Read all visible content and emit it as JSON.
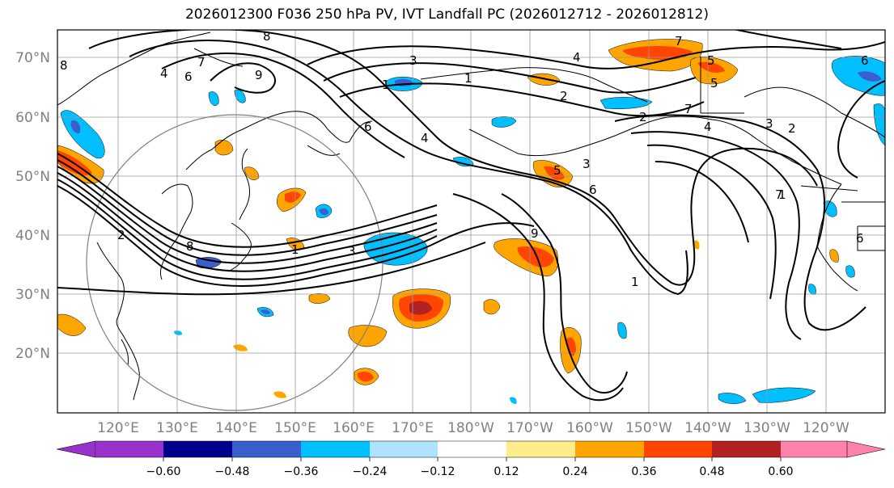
{
  "title": "2026012300 F036 250 hPa PV, IVT Landfall PC (2026012712 - 2026012812)",
  "lat_labels": [
    "70°N",
    "60°N",
    "50°N",
    "40°N",
    "30°N",
    "20°N"
  ],
  "lon_labels": [
    "120°E",
    "130°E",
    "140°E",
    "150°E",
    "160°E",
    "170°E",
    "180°W",
    "170°W",
    "160°W",
    "150°W",
    "140°W",
    "130°W",
    "120°W"
  ],
  "colorbar": {
    "colors": [
      "#9932cc",
      "#00008b",
      "#3a5fcd",
      "#00bfff",
      "#b0e2ff",
      "#ffffff",
      "#ffec8b",
      "#ffa500",
      "#ff4500",
      "#b22222",
      "#ff82ab"
    ],
    "tick_labels": [
      "−0.60",
      "−0.48",
      "−0.36",
      "−0.24",
      "−0.12",
      "0.12",
      "0.24",
      "0.36",
      "0.48",
      "0.60"
    ]
  },
  "contour_labels": [
    "8",
    "6",
    "4",
    "9",
    "7",
    "1",
    "2",
    "3",
    "6",
    "4",
    "5",
    "6",
    "7",
    "8",
    "5",
    "3",
    "1",
    "4",
    "6",
    "1",
    "2",
    "7",
    "3",
    "2",
    "6",
    "4",
    "8",
    "3",
    "7",
    "1",
    "2",
    "9",
    "1",
    "5"
  ]
}
